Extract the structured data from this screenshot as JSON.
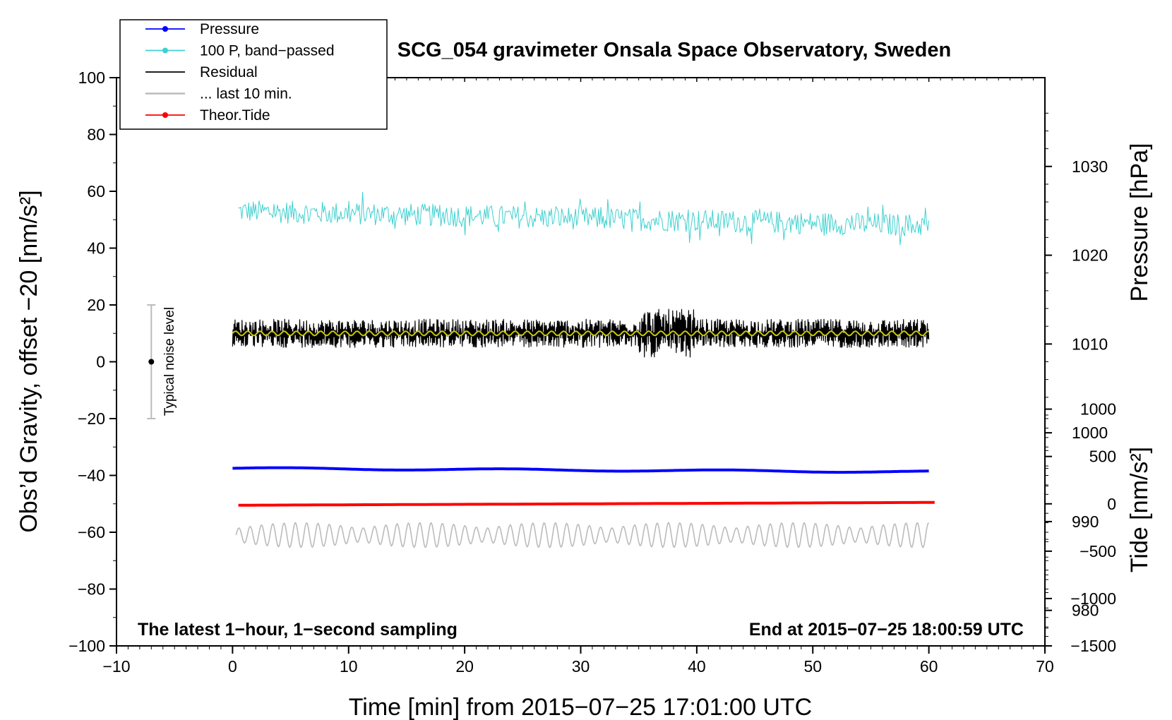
{
  "chart_data": {
    "type": "line",
    "title": "SCG_054 gravimeter Onsala Space Observatory, Sweden",
    "xlabel": "Time [min] from 2015−07−25 17:01:00 UTC",
    "ylabel_left": "Obs’d Gravity, offset −20 [nm/s²]",
    "ylabel_right_pressure": "Pressure [hPa]",
    "ylabel_right_tide": "Tide [nm/s²]",
    "xlim": [
      -10,
      70
    ],
    "ylim": [
      -100,
      100
    ],
    "pressure_ylim": [
      976,
      1040
    ],
    "tide_ylim": [
      -1500,
      4500
    ],
    "x_ticks": [
      {
        "value": -10,
        "label": "−10"
      },
      {
        "value": 0,
        "label": "0"
      },
      {
        "value": 10,
        "label": "10"
      },
      {
        "value": 20,
        "label": "20"
      },
      {
        "value": 30,
        "label": "30"
      },
      {
        "value": 40,
        "label": "40"
      },
      {
        "value": 50,
        "label": "50"
      },
      {
        "value": 60,
        "label": "60"
      },
      {
        "value": 70,
        "label": "70"
      }
    ],
    "y_ticks": [
      {
        "value": 100,
        "label": "100"
      },
      {
        "value": 80,
        "label": "80"
      },
      {
        "value": 60,
        "label": "60"
      },
      {
        "value": 40,
        "label": "40"
      },
      {
        "value": 20,
        "label": "20"
      },
      {
        "value": 0,
        "label": "0"
      },
      {
        "value": -20,
        "label": "−20"
      },
      {
        "value": -40,
        "label": "−40"
      },
      {
        "value": -60,
        "label": "−60"
      },
      {
        "value": -80,
        "label": "−80"
      },
      {
        "value": -100,
        "label": "−100"
      }
    ],
    "pressure_ticks": [
      {
        "value": 1030,
        "label": "1030"
      },
      {
        "value": 1020,
        "label": "1020"
      },
      {
        "value": 1010,
        "label": "1010"
      },
      {
        "value": 1000,
        "label": "1000"
      },
      {
        "value": 990,
        "label": "990"
      },
      {
        "value": 980,
        "label": "980"
      }
    ],
    "tide_ticks": [
      {
        "value": 1000,
        "label": "1000"
      },
      {
        "value": 500,
        "label": "500"
      },
      {
        "value": 0,
        "label": "0"
      },
      {
        "value": -500,
        "label": "−500"
      },
      {
        "value": -1000,
        "label": "−1000"
      },
      {
        "value": -1500,
        "label": "−1500"
      }
    ],
    "legend": [
      {
        "label": "Pressure",
        "color": "#0000ff",
        "marker": true
      },
      {
        "label": "100 P, band−passed",
        "color": "#3fd0d0",
        "marker": true
      },
      {
        "label": "Residual",
        "color": "#000000",
        "marker": false
      },
      {
        "label": "... last 10 min.",
        "color": "#bbbbbb",
        "marker": false
      },
      {
        "label": "Theor.Tide",
        "color": "#ff0000",
        "marker": true
      }
    ],
    "series": [
      {
        "name": "Pressure",
        "axis": "pressure",
        "color": "#0000ff",
        "x_range": [
          0,
          60
        ],
        "start_value": 996.0,
        "end_value": 995.6,
        "variation": 0.1
      },
      {
        "name": "100 P, band-passed",
        "axis": "left",
        "color": "#3fd0d0",
        "x_range": [
          0.5,
          60
        ],
        "start_value": 53,
        "end_value": 48,
        "amplitude": 5
      },
      {
        "name": "Residual",
        "axis": "left",
        "color": "#000000",
        "x_range": [
          0,
          60
        ],
        "mean": 10,
        "amplitude": 5
      },
      {
        "name": "Residual smoothed",
        "axis": "left",
        "color": "#c8c800",
        "x_range": [
          0,
          60
        ],
        "mean": 10,
        "amplitude": 1
      },
      {
        "name": "... last 10 min.",
        "axis": "left",
        "color": "#bbbbbb",
        "x_range": [
          0.3,
          60
        ],
        "mean": -61,
        "amplitude": 4
      },
      {
        "name": "Theor.Tide",
        "axis": "tide",
        "color": "#ff0000",
        "x_range": [
          0.5,
          60.5
        ],
        "start_value": -15,
        "end_value": 15
      }
    ],
    "noise_bar": {
      "x": -7,
      "center": 0,
      "low": -20,
      "high": 20,
      "label": "Typical noise level"
    },
    "annotations": {
      "left": "The latest 1−hour, 1−second sampling",
      "right": "End at 2015−07−25 18:00:59 UTC"
    }
  }
}
